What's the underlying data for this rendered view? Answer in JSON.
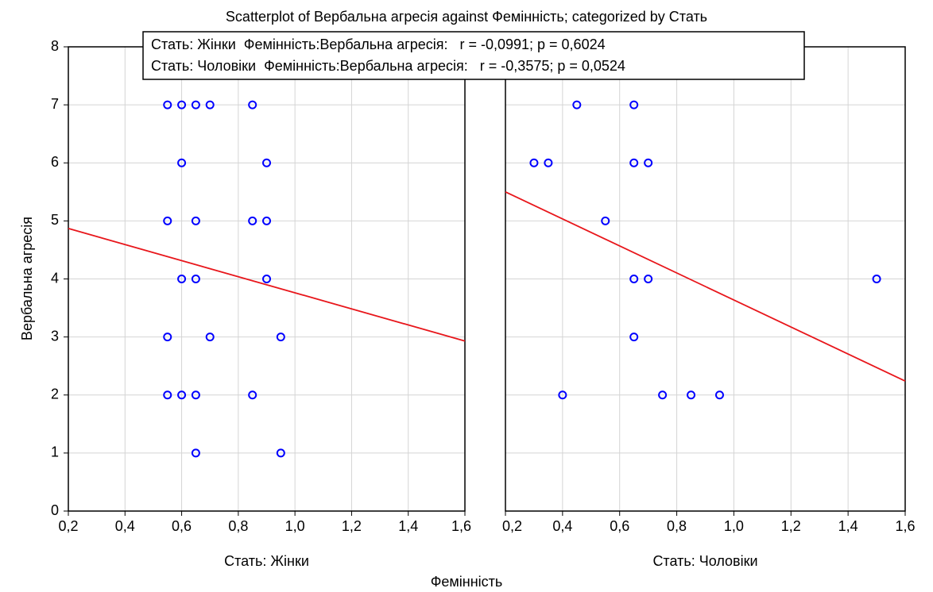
{
  "chart_data": {
    "type": "scatter",
    "title": "Scatterplot of Вербальна агресія against Фемінність; categorized by Стать",
    "xlabel": "Фемінність",
    "ylabel": "Вербальна агресія",
    "legend": [
      "Стать: Жінки  Фемінність:Вербальна агресія:   r = -0,0991; p = 0,6024",
      "Стать: Чоловіки  Фемінність:Вербальна агресія:   r = -0,3575; p = 0,0524"
    ],
    "point_color": "#0000ff",
    "line_color": "#e8161b",
    "grid": true,
    "xlim": [
      0.2,
      1.6
    ],
    "xticks": [
      {
        "value": 0.2,
        "label": "0,2"
      },
      {
        "value": 0.4,
        "label": "0,4"
      },
      {
        "value": 0.6,
        "label": "0,6"
      },
      {
        "value": 0.8,
        "label": "0,8"
      },
      {
        "value": 1.0,
        "label": "1,0"
      },
      {
        "value": 1.2,
        "label": "1,2"
      },
      {
        "value": 1.4,
        "label": "1,4"
      },
      {
        "value": 1.6,
        "label": "1,6"
      }
    ],
    "ylim": [
      0,
      8
    ],
    "yticks": [
      0,
      1,
      2,
      3,
      4,
      5,
      6,
      7,
      8
    ],
    "panels": [
      {
        "label": "Стать: Жінки",
        "x": [
          0.55,
          0.6,
          0.65,
          0.7,
          0.85,
          0.6,
          0.9,
          0.55,
          0.65,
          0.85,
          0.9,
          0.6,
          0.65,
          0.9,
          0.55,
          0.7,
          0.95,
          0.55,
          0.6,
          0.65,
          0.85,
          0.65,
          0.95
        ],
        "y": [
          7,
          7,
          7,
          7,
          7,
          6,
          6,
          5,
          5,
          5,
          5,
          4,
          4,
          4,
          3,
          3,
          3,
          2,
          2,
          2,
          2,
          1,
          1
        ],
        "fit": {
          "x": [
            0.2,
            1.6
          ],
          "y": [
            4.87,
            2.93
          ]
        }
      },
      {
        "label": "Стать: Чоловіки",
        "x": [
          0.45,
          0.65,
          0.3,
          0.35,
          0.65,
          0.7,
          0.55,
          0.65,
          0.7,
          1.5,
          0.65,
          0.4,
          0.75,
          0.85,
          0.95
        ],
        "y": [
          7,
          7,
          6,
          6,
          6,
          6,
          5,
          4,
          4,
          4,
          3,
          2,
          2,
          2,
          2
        ],
        "fit": {
          "x": [
            0.2,
            1.6
          ],
          "y": [
            5.5,
            2.24
          ]
        }
      }
    ]
  }
}
